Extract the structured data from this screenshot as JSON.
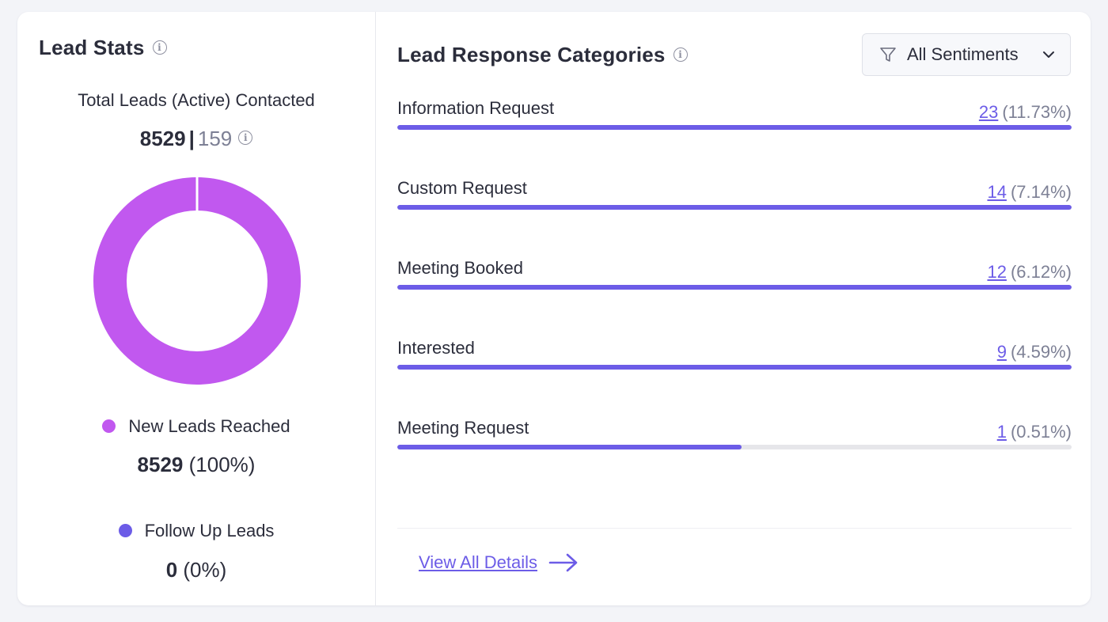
{
  "lead_stats": {
    "title": "Lead Stats",
    "total_label": "Total Leads (Active) Contacted",
    "total_value": "8529",
    "separator": "|",
    "active_value": "159",
    "legend": [
      {
        "label": "New Leads Reached",
        "value": "8529",
        "percent": "(100%)",
        "color": "#c158ef",
        "share": 1.0
      },
      {
        "label": "Follow Up Leads",
        "value": "0",
        "percent": "(0%)",
        "color": "#6c5ce7",
        "share": 0.0
      }
    ]
  },
  "response_categories": {
    "title": "Lead Response Categories",
    "filter_label": "All Sentiments",
    "items": [
      {
        "label": "Information Request",
        "count": "23",
        "percent": "(11.73%)",
        "fill": 1.0
      },
      {
        "label": "Custom Request",
        "count": "14",
        "percent": "(7.14%)",
        "fill": 1.0
      },
      {
        "label": "Meeting Booked",
        "count": "12",
        "percent": "(6.12%)",
        "fill": 1.0
      },
      {
        "label": "Interested",
        "count": "9",
        "percent": "(4.59%)",
        "fill": 1.0
      },
      {
        "label": "Meeting Request",
        "count": "1",
        "percent": "(0.51%)",
        "fill": 0.51
      }
    ],
    "view_all_label": "View All Details"
  },
  "colors": {
    "accent": "#6c5ce7",
    "donut": "#c158ef",
    "track": "#e6e6ea"
  },
  "icons": {
    "info": "info-icon",
    "filter": "funnel-icon",
    "dropdown": "chevron-down-icon",
    "arrow": "arrow-right-icon"
  }
}
